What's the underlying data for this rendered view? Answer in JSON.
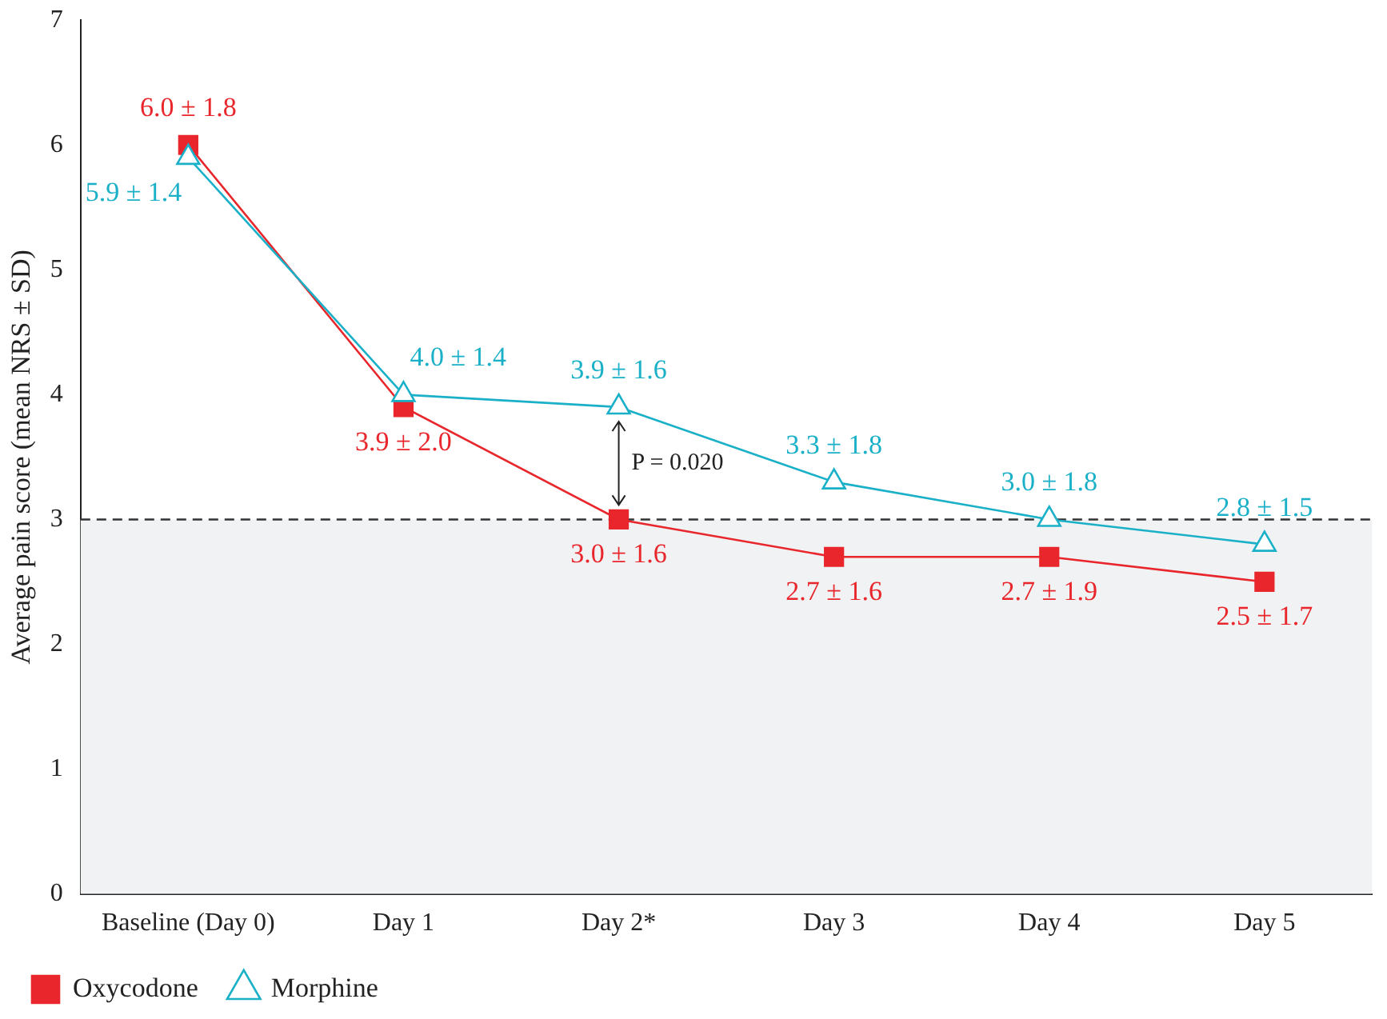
{
  "chart_data": {
    "type": "line",
    "ylabel": "Average pain score (mean NRS ± SD)",
    "categories": [
      "Baseline (Day 0)",
      "Day 1",
      "Day 2*",
      "Day 3",
      "Day 4",
      "Day 5"
    ],
    "series": [
      {
        "name": "Oxycodone",
        "color": "#e8262b",
        "marker": "square",
        "values": [
          6.0,
          3.9,
          3.0,
          2.7,
          2.7,
          2.5
        ],
        "value_labels": [
          "6.0 ± 1.8",
          "3.9 ± 2.0",
          "3.0 ± 1.6",
          "2.7 ± 1.6",
          "2.7 ± 1.9",
          "2.5 ± 1.7"
        ]
      },
      {
        "name": "Morphine",
        "color": "#1ab0c8",
        "marker": "triangle",
        "values": [
          5.9,
          4.0,
          3.9,
          3.3,
          3.0,
          2.8
        ],
        "value_labels": [
          "5.9 ± 1.4",
          "4.0 ± 1.4",
          "3.9 ± 1.6",
          "3.3 ± 1.8",
          "3.0 ± 1.8",
          "2.8 ± 1.5"
        ]
      }
    ],
    "ylim": [
      0,
      7
    ],
    "yticks": [
      0,
      1,
      2,
      3,
      4,
      5,
      6,
      7
    ],
    "grid": false,
    "legend": "bottom left",
    "line_style": "solid",
    "ref_lines": [
      {
        "axis": "y",
        "value": 3,
        "color": "#333333",
        "line_style": "dashed"
      }
    ],
    "bands": [
      {
        "axis": "y",
        "from": 0,
        "to": 3,
        "color": "#f1f2f4"
      }
    ],
    "annotations": [
      "P = 0.020"
    ]
  }
}
